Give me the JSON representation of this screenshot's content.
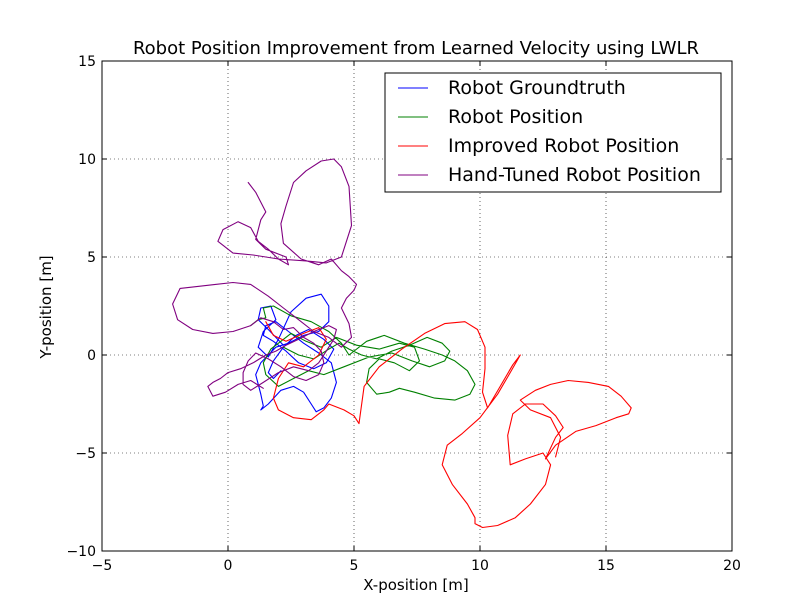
{
  "chart_data": {
    "type": "line",
    "title": "Robot Position Improvement from Learned Velocity using LWLR",
    "xlabel": "X-position [m]",
    "ylabel": "Y-position [m]",
    "xlim": [
      -5,
      20
    ],
    "ylim": [
      -10,
      15
    ],
    "xticks": [
      -5,
      0,
      5,
      10,
      15,
      20
    ],
    "yticks": [
      -10,
      -5,
      0,
      5,
      10,
      15
    ],
    "xtick_labels": [
      "−5",
      "0",
      "5",
      "10",
      "15",
      "20"
    ],
    "ytick_labels": [
      "−10",
      "−5",
      "0",
      "5",
      "10",
      "15"
    ],
    "grid": true,
    "legend_position": "top-right",
    "series": [
      {
        "name": "Robot Groundtruth",
        "color": "#0000ff",
        "x": [
          2.2,
          1.6,
          1.2,
          1.3,
          1.7,
          1.9,
          1.4,
          1.2,
          1.6,
          2.0,
          2.5,
          3.1,
          3.7,
          4.0,
          4.0,
          3.6,
          3.0,
          2.4,
          1.9,
          1.6,
          1.3,
          1.1,
          1.3,
          1.4,
          1.3,
          1.6,
          2.1,
          2.6,
          3.0,
          3.3,
          3.5,
          3.8,
          4.1,
          4.3,
          4.1,
          3.6,
          3.0,
          2.4,
          1.9,
          1.5,
          1.4,
          1.8,
          2.3,
          2.8,
          3.4,
          3.9,
          4.2,
          3.8,
          3.2,
          2.7,
          2.2,
          1.8,
          1.6,
          1.8,
          2.1
        ],
        "y": [
          0.5,
          1.3,
          1.8,
          2.4,
          2.5,
          1.8,
          1.2,
          0.4,
          -0.1,
          0.8,
          2.2,
          2.9,
          3.1,
          2.5,
          1.7,
          1.2,
          1.0,
          0.6,
          0.4,
          0.0,
          -0.4,
          -1.0,
          -2.0,
          -2.6,
          -2.8,
          -2.5,
          -1.8,
          -1.6,
          -1.9,
          -2.5,
          -2.9,
          -2.7,
          -2.2,
          -1.4,
          -0.4,
          0.1,
          0.6,
          1.2,
          1.7,
          1.5,
          1.0,
          0.7,
          0.2,
          -0.4,
          -0.7,
          -0.4,
          0.3,
          0.8,
          1.3,
          1.0,
          0.4,
          -0.3,
          -0.9,
          -1.2,
          -0.8
        ]
      },
      {
        "name": "Robot Position",
        "color": "#008000",
        "x": [
          0.9,
          1.2,
          1.5,
          1.4,
          1.8,
          2.5,
          3.3,
          4.0,
          4.5,
          4.8,
          5.5,
          6.2,
          7.0,
          7.8,
          8.5,
          9.0,
          9.5,
          9.8,
          9.6,
          9.0,
          8.2,
          7.4,
          6.8,
          6.4,
          5.9,
          5.5,
          5.6,
          6.0,
          6.6,
          7.2,
          7.6,
          7.4,
          6.8,
          6.0,
          5.1,
          4.3,
          3.7,
          3.1,
          2.5,
          2.1,
          1.7,
          1.4,
          1.5,
          2.0,
          2.6,
          3.2,
          3.8,
          4.6,
          5.6,
          6.5,
          7.3,
          8.0,
          8.6,
          8.8,
          8.5,
          7.9,
          7.2,
          6.5,
          5.9,
          5.3,
          4.8,
          4.4,
          4.0,
          3.4,
          2.8,
          2.2
        ],
        "y": [
          1.5,
          1.8,
          1.9,
          2.4,
          2.5,
          2.0,
          1.7,
          1.2,
          0.6,
          0.0,
          0.7,
          1.0,
          0.6,
          0.3,
          0.0,
          -0.3,
          -0.8,
          -1.5,
          -2.0,
          -2.3,
          -2.2,
          -1.9,
          -1.7,
          -1.9,
          -2.0,
          -1.4,
          -0.7,
          -0.2,
          -0.4,
          -0.8,
          -0.3,
          0.4,
          0.6,
          0.3,
          0.5,
          0.9,
          0.4,
          0.7,
          1.1,
          0.7,
          0.3,
          -0.4,
          -1.0,
          -1.6,
          -1.2,
          -0.8,
          -1.0,
          -0.6,
          -0.1,
          0.1,
          -0.3,
          -0.6,
          -0.3,
          0.2,
          0.6,
          0.9,
          0.5,
          0.2,
          -0.2,
          0.0,
          0.3,
          0.6,
          0.3,
          -0.2,
          0.0,
          0.4
        ]
      },
      {
        "name": "Improved Robot Position",
        "color": "#ff0000",
        "x": [
          1.5,
          1.8,
          2.3,
          3.0,
          3.6,
          3.9,
          3.6,
          3.0,
          2.4,
          2.0,
          1.8,
          2.0,
          2.6,
          3.3,
          3.8,
          4.0,
          4.6,
          5.0,
          5.2,
          5.4,
          6.0,
          6.9,
          7.8,
          8.6,
          9.4,
          9.9,
          10.2,
          10.2,
          10.1,
          10.3,
          10.8,
          11.3,
          11.6,
          11.2,
          10.7,
          10.0,
          9.3,
          8.7,
          8.5,
          8.9,
          9.5,
          9.8,
          9.8,
          10.1,
          10.7,
          11.4,
          12.0,
          12.6,
          12.8,
          12.5,
          11.8,
          11.2,
          11.1,
          11.3,
          11.8,
          12.5,
          13.0,
          13.3,
          13.0,
          12.6,
          13.0,
          13.8,
          14.6,
          15.4,
          15.9,
          16.0,
          15.6,
          15.1,
          14.3,
          13.5,
          12.8,
          12.2,
          11.6,
          12.0,
          12.8,
          13.2,
          13.0
        ],
        "y": [
          1.7,
          1.0,
          0.7,
          1.1,
          1.4,
          0.8,
          0.0,
          -0.6,
          -0.4,
          -1.2,
          -2.2,
          -2.8,
          -3.2,
          -3.3,
          -2.8,
          -2.5,
          -2.8,
          -3.1,
          -3.5,
          -1.6,
          -0.6,
          0.3,
          1.1,
          1.6,
          1.7,
          1.3,
          0.4,
          -0.7,
          -1.9,
          -2.7,
          -1.6,
          -0.5,
          0.0,
          -0.9,
          -2.0,
          -3.2,
          -4.0,
          -4.6,
          -5.6,
          -6.6,
          -7.6,
          -8.3,
          -8.6,
          -8.8,
          -8.7,
          -8.3,
          -7.6,
          -6.6,
          -5.6,
          -5.0,
          -5.3,
          -5.6,
          -4.1,
          -3.0,
          -2.5,
          -2.5,
          -3.1,
          -3.7,
          -4.2,
          -5.3,
          -4.6,
          -3.9,
          -3.6,
          -3.2,
          -3.0,
          -2.7,
          -2.1,
          -1.6,
          -1.4,
          -1.3,
          -1.5,
          -1.8,
          -2.3,
          -2.8,
          -3.2,
          -4.2,
          -5.2
        ]
      },
      {
        "name": "Hand-Tuned Robot Position",
        "color": "#800080",
        "x": [
          0.8,
          1.1,
          1.5,
          1.3,
          1.1,
          1.5,
          2.3,
          2.4,
          2.0,
          1.6,
          1.2,
          0.9,
          0.4,
          -0.2,
          -0.4,
          0.2,
          1.0,
          2.0,
          3.1,
          3.9,
          4.5,
          4.9,
          4.8,
          4.5,
          4.2,
          3.7,
          3.1,
          2.6,
          2.3,
          2.1,
          2.2,
          2.9,
          3.6,
          4.1,
          4.5,
          4.8,
          5.1,
          5.0,
          4.7,
          4.5,
          4.8,
          4.9,
          4.5,
          4.0,
          3.4,
          2.8,
          2.2,
          1.6,
          0.9,
          0.2,
          -0.5,
          -1.2,
          -1.9,
          -2.2,
          -2.0,
          -1.4,
          -0.6,
          0.2,
          0.9,
          1.3,
          1.8,
          2.2,
          2.6,
          3.0,
          3.4,
          3.7,
          3.8,
          3.6,
          3.1,
          2.6,
          2.1,
          1.6,
          1.1,
          0.8,
          0.6,
          0.6,
          0.9,
          1.4,
          2.0,
          2.6,
          3.2,
          3.6,
          3.9,
          4.2,
          4.3,
          4.0,
          3.4,
          2.8,
          2.3,
          1.9,
          1.5,
          1.0,
          0.5,
          0.0,
          -0.3,
          -0.6,
          -0.8,
          -0.6,
          -0.1,
          0.4,
          0.9,
          1.4
        ],
        "y": [
          8.8,
          8.3,
          7.3,
          6.9,
          5.9,
          5.4,
          5.0,
          4.6,
          4.9,
          5.4,
          5.8,
          6.5,
          6.8,
          6.4,
          5.8,
          5.2,
          5.1,
          4.9,
          4.8,
          4.7,
          5.0,
          6.6,
          8.6,
          9.6,
          10.0,
          9.9,
          9.4,
          8.8,
          7.6,
          6.7,
          5.7,
          4.9,
          4.6,
          4.9,
          4.3,
          4.0,
          3.6,
          3.3,
          2.9,
          2.4,
          1.6,
          0.9,
          0.4,
          0.9,
          1.2,
          1.8,
          2.4,
          3.0,
          3.6,
          3.7,
          3.6,
          3.5,
          3.4,
          2.6,
          1.8,
          1.3,
          1.1,
          1.2,
          1.5,
          1.9,
          1.7,
          1.3,
          1.4,
          0.9,
          0.6,
          0.2,
          -0.4,
          -1.0,
          -1.3,
          -1.1,
          -0.6,
          -0.2,
          0.1,
          -0.3,
          -0.9,
          -1.5,
          -1.8,
          -1.4,
          -0.9,
          -0.6,
          -0.8,
          -0.4,
          0.2,
          0.8,
          1.3,
          1.5,
          1.2,
          0.8,
          0.5,
          0.2,
          0.0,
          -0.4,
          -0.7,
          -0.9,
          -1.2,
          -1.4,
          -1.6,
          -2.1,
          -1.9,
          -1.5,
          -1.3,
          -1.7
        ]
      }
    ]
  }
}
